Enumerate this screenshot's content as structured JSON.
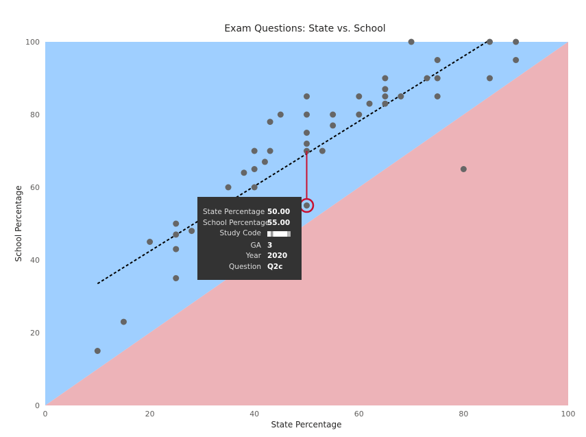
{
  "chart_data": {
    "type": "scatter",
    "title": "Exam Questions: State vs. School",
    "xlabel": "State Percentage",
    "ylabel": "School Percentage",
    "xlim": [
      0,
      100
    ],
    "ylim": [
      0,
      100
    ],
    "x_ticks": [
      "0",
      "20",
      "40",
      "60",
      "80",
      "100"
    ],
    "y_ticks": [
      "0",
      "20",
      "40",
      "60",
      "80",
      "100"
    ],
    "grid": false,
    "legend": "none",
    "background_regions": [
      {
        "region": "above y=x",
        "color": "#9fcfff"
      },
      {
        "region": "below y=x",
        "color": "#edb3b8"
      }
    ],
    "trend_line": {
      "from": [
        10,
        33.5
      ],
      "to": [
        85,
        100.5
      ],
      "color": "#000000",
      "style": "dashed"
    },
    "point_color": "#666666",
    "points": [
      {
        "x": 10,
        "y": 15
      },
      {
        "x": 15,
        "y": 23
      },
      {
        "x": 20,
        "y": 45
      },
      {
        "x": 25,
        "y": 35
      },
      {
        "x": 25,
        "y": 43
      },
      {
        "x": 25,
        "y": 47
      },
      {
        "x": 25,
        "y": 50
      },
      {
        "x": 28,
        "y": 48
      },
      {
        "x": 35,
        "y": 60
      },
      {
        "x": 38,
        "y": 64
      },
      {
        "x": 40,
        "y": 60
      },
      {
        "x": 40,
        "y": 65
      },
      {
        "x": 40,
        "y": 70
      },
      {
        "x": 42,
        "y": 67
      },
      {
        "x": 43,
        "y": 70
      },
      {
        "x": 43,
        "y": 78
      },
      {
        "x": 45,
        "y": 80
      },
      {
        "x": 50,
        "y": 55
      },
      {
        "x": 50,
        "y": 70
      },
      {
        "x": 50,
        "y": 72
      },
      {
        "x": 50,
        "y": 75
      },
      {
        "x": 50,
        "y": 80
      },
      {
        "x": 50,
        "y": 85
      },
      {
        "x": 53,
        "y": 70
      },
      {
        "x": 55,
        "y": 77
      },
      {
        "x": 55,
        "y": 80
      },
      {
        "x": 60,
        "y": 80
      },
      {
        "x": 60,
        "y": 85
      },
      {
        "x": 62,
        "y": 83
      },
      {
        "x": 65,
        "y": 83
      },
      {
        "x": 65,
        "y": 85
      },
      {
        "x": 65,
        "y": 87
      },
      {
        "x": 65,
        "y": 90
      },
      {
        "x": 68,
        "y": 85
      },
      {
        "x": 70,
        "y": 100
      },
      {
        "x": 73,
        "y": 90
      },
      {
        "x": 75,
        "y": 85
      },
      {
        "x": 75,
        "y": 90
      },
      {
        "x": 75,
        "y": 95
      },
      {
        "x": 80,
        "y": 65
      },
      {
        "x": 85,
        "y": 90
      },
      {
        "x": 85,
        "y": 100
      },
      {
        "x": 90,
        "y": 95
      },
      {
        "x": 90,
        "y": 100
      }
    ],
    "highlight": {
      "x": 50,
      "y": 55,
      "color": "#c8102e",
      "connector_to_y": 70
    },
    "tooltip": {
      "rows": [
        {
          "key": "State Percentage",
          "value": "50.00"
        },
        {
          "key": "School Percentage",
          "value": "55.00"
        },
        {
          "key": "Study Code",
          "value": ""
        },
        {
          "key": "GA",
          "value": "3"
        },
        {
          "key": "Year",
          "value": "2020"
        },
        {
          "key": "Question",
          "value": "Q2c"
        }
      ]
    }
  }
}
